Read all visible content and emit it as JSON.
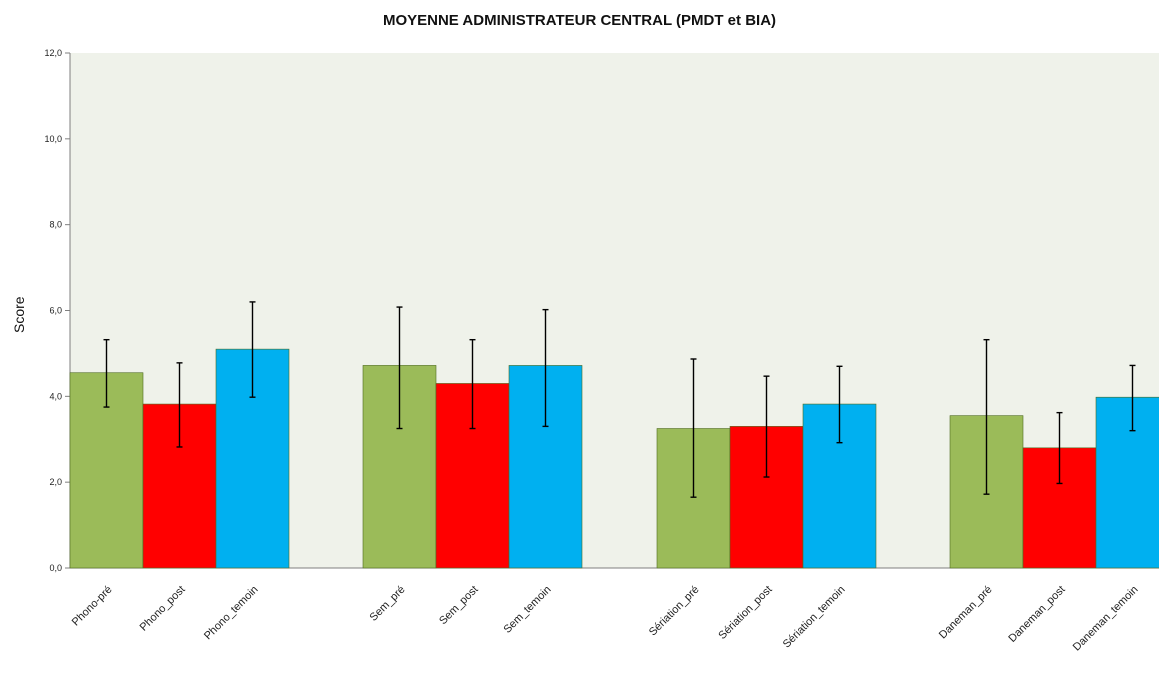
{
  "chart_data": {
    "type": "bar",
    "title": "MOYENNE ADMINISTRATEUR CENTRAL (PMDT et BIA)",
    "ylabel": "Score",
    "xlabel": "",
    "ylim": [
      0,
      12
    ],
    "y_ticks": [
      "0,0",
      "2,0",
      "4,0",
      "6,0",
      "8,0",
      "10,0",
      "12,0"
    ],
    "grid": false,
    "colors": {
      "pre": "#9bbb59",
      "post": "#ff0000",
      "temoin": "#00b0f0",
      "plot_bg": "#eff2ea",
      "error": "#000000"
    },
    "groups": [
      {
        "bars": [
          {
            "label": "Phono-pré",
            "value": 4.55,
            "err_low": 3.75,
            "err_high": 5.32,
            "kind": "pre"
          },
          {
            "label": "Phono_post",
            "value": 3.82,
            "err_low": 2.82,
            "err_high": 4.78,
            "kind": "post"
          },
          {
            "label": "Phono_temoin",
            "value": 5.1,
            "err_low": 3.98,
            "err_high": 6.2,
            "kind": "temoin"
          }
        ]
      },
      {
        "bars": [
          {
            "label": "Sem_pré",
            "value": 4.72,
            "err_low": 3.25,
            "err_high": 6.08,
            "kind": "pre"
          },
          {
            "label": "Sem_post",
            "value": 4.3,
            "err_low": 3.25,
            "err_high": 5.32,
            "kind": "post"
          },
          {
            "label": "Sem_temoin",
            "value": 4.72,
            "err_low": 3.3,
            "err_high": 6.02,
            "kind": "temoin"
          }
        ]
      },
      {
        "bars": [
          {
            "label": "Sériation_pré",
            "value": 3.25,
            "err_low": 1.65,
            "err_high": 4.87,
            "kind": "pre"
          },
          {
            "label": "Sériation_post",
            "value": 3.3,
            "err_low": 2.12,
            "err_high": 4.47,
            "kind": "post"
          },
          {
            "label": "Sériation_temoin",
            "value": 3.82,
            "err_low": 2.92,
            "err_high": 4.7,
            "kind": "temoin"
          }
        ]
      },
      {
        "bars": [
          {
            "label": "Daneman_pré",
            "value": 3.55,
            "err_low": 1.72,
            "err_high": 5.32,
            "kind": "pre"
          },
          {
            "label": "Daneman_post",
            "value": 2.8,
            "err_low": 1.97,
            "err_high": 3.62,
            "kind": "post"
          },
          {
            "label": "Daneman_temoin",
            "value": 3.98,
            "err_low": 3.2,
            "err_high": 4.72,
            "kind": "temoin"
          }
        ]
      }
    ]
  }
}
